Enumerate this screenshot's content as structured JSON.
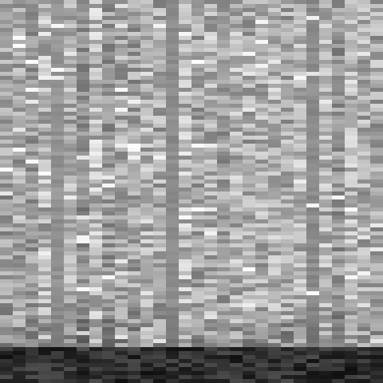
{
  "chart_data": {
    "type": "heatmap",
    "colormap": "grayscale",
    "n_columns": 30,
    "n_rows": 96,
    "title": "",
    "xlabel": "",
    "ylabel": "",
    "grid": false,
    "legend": "none",
    "column_mean_intensity": [
      0.62,
      0.66,
      0.6,
      0.7,
      0.58,
      0.68,
      0.56,
      0.74,
      0.6,
      0.66,
      0.63,
      0.7,
      0.66,
      0.55,
      0.72,
      0.64,
      0.68,
      0.62,
      0.7,
      0.66,
      0.68,
      0.72,
      0.66,
      0.7,
      0.55,
      0.7,
      0.6,
      0.72,
      0.68,
      0.66
    ],
    "column_variability": [
      0.18,
      0.18,
      0.16,
      0.2,
      0.05,
      0.17,
      0.14,
      0.2,
      0.16,
      0.18,
      0.18,
      0.19,
      0.18,
      0.04,
      0.2,
      0.17,
      0.18,
      0.16,
      0.19,
      0.18,
      0.18,
      0.19,
      0.18,
      0.18,
      0.05,
      0.18,
      0.16,
      0.19,
      0.18,
      0.18
    ],
    "bottom_dark_band": true,
    "background": "#7a7a7a",
    "bright_color": "#f2f2f2",
    "dark_color": "#050505"
  }
}
